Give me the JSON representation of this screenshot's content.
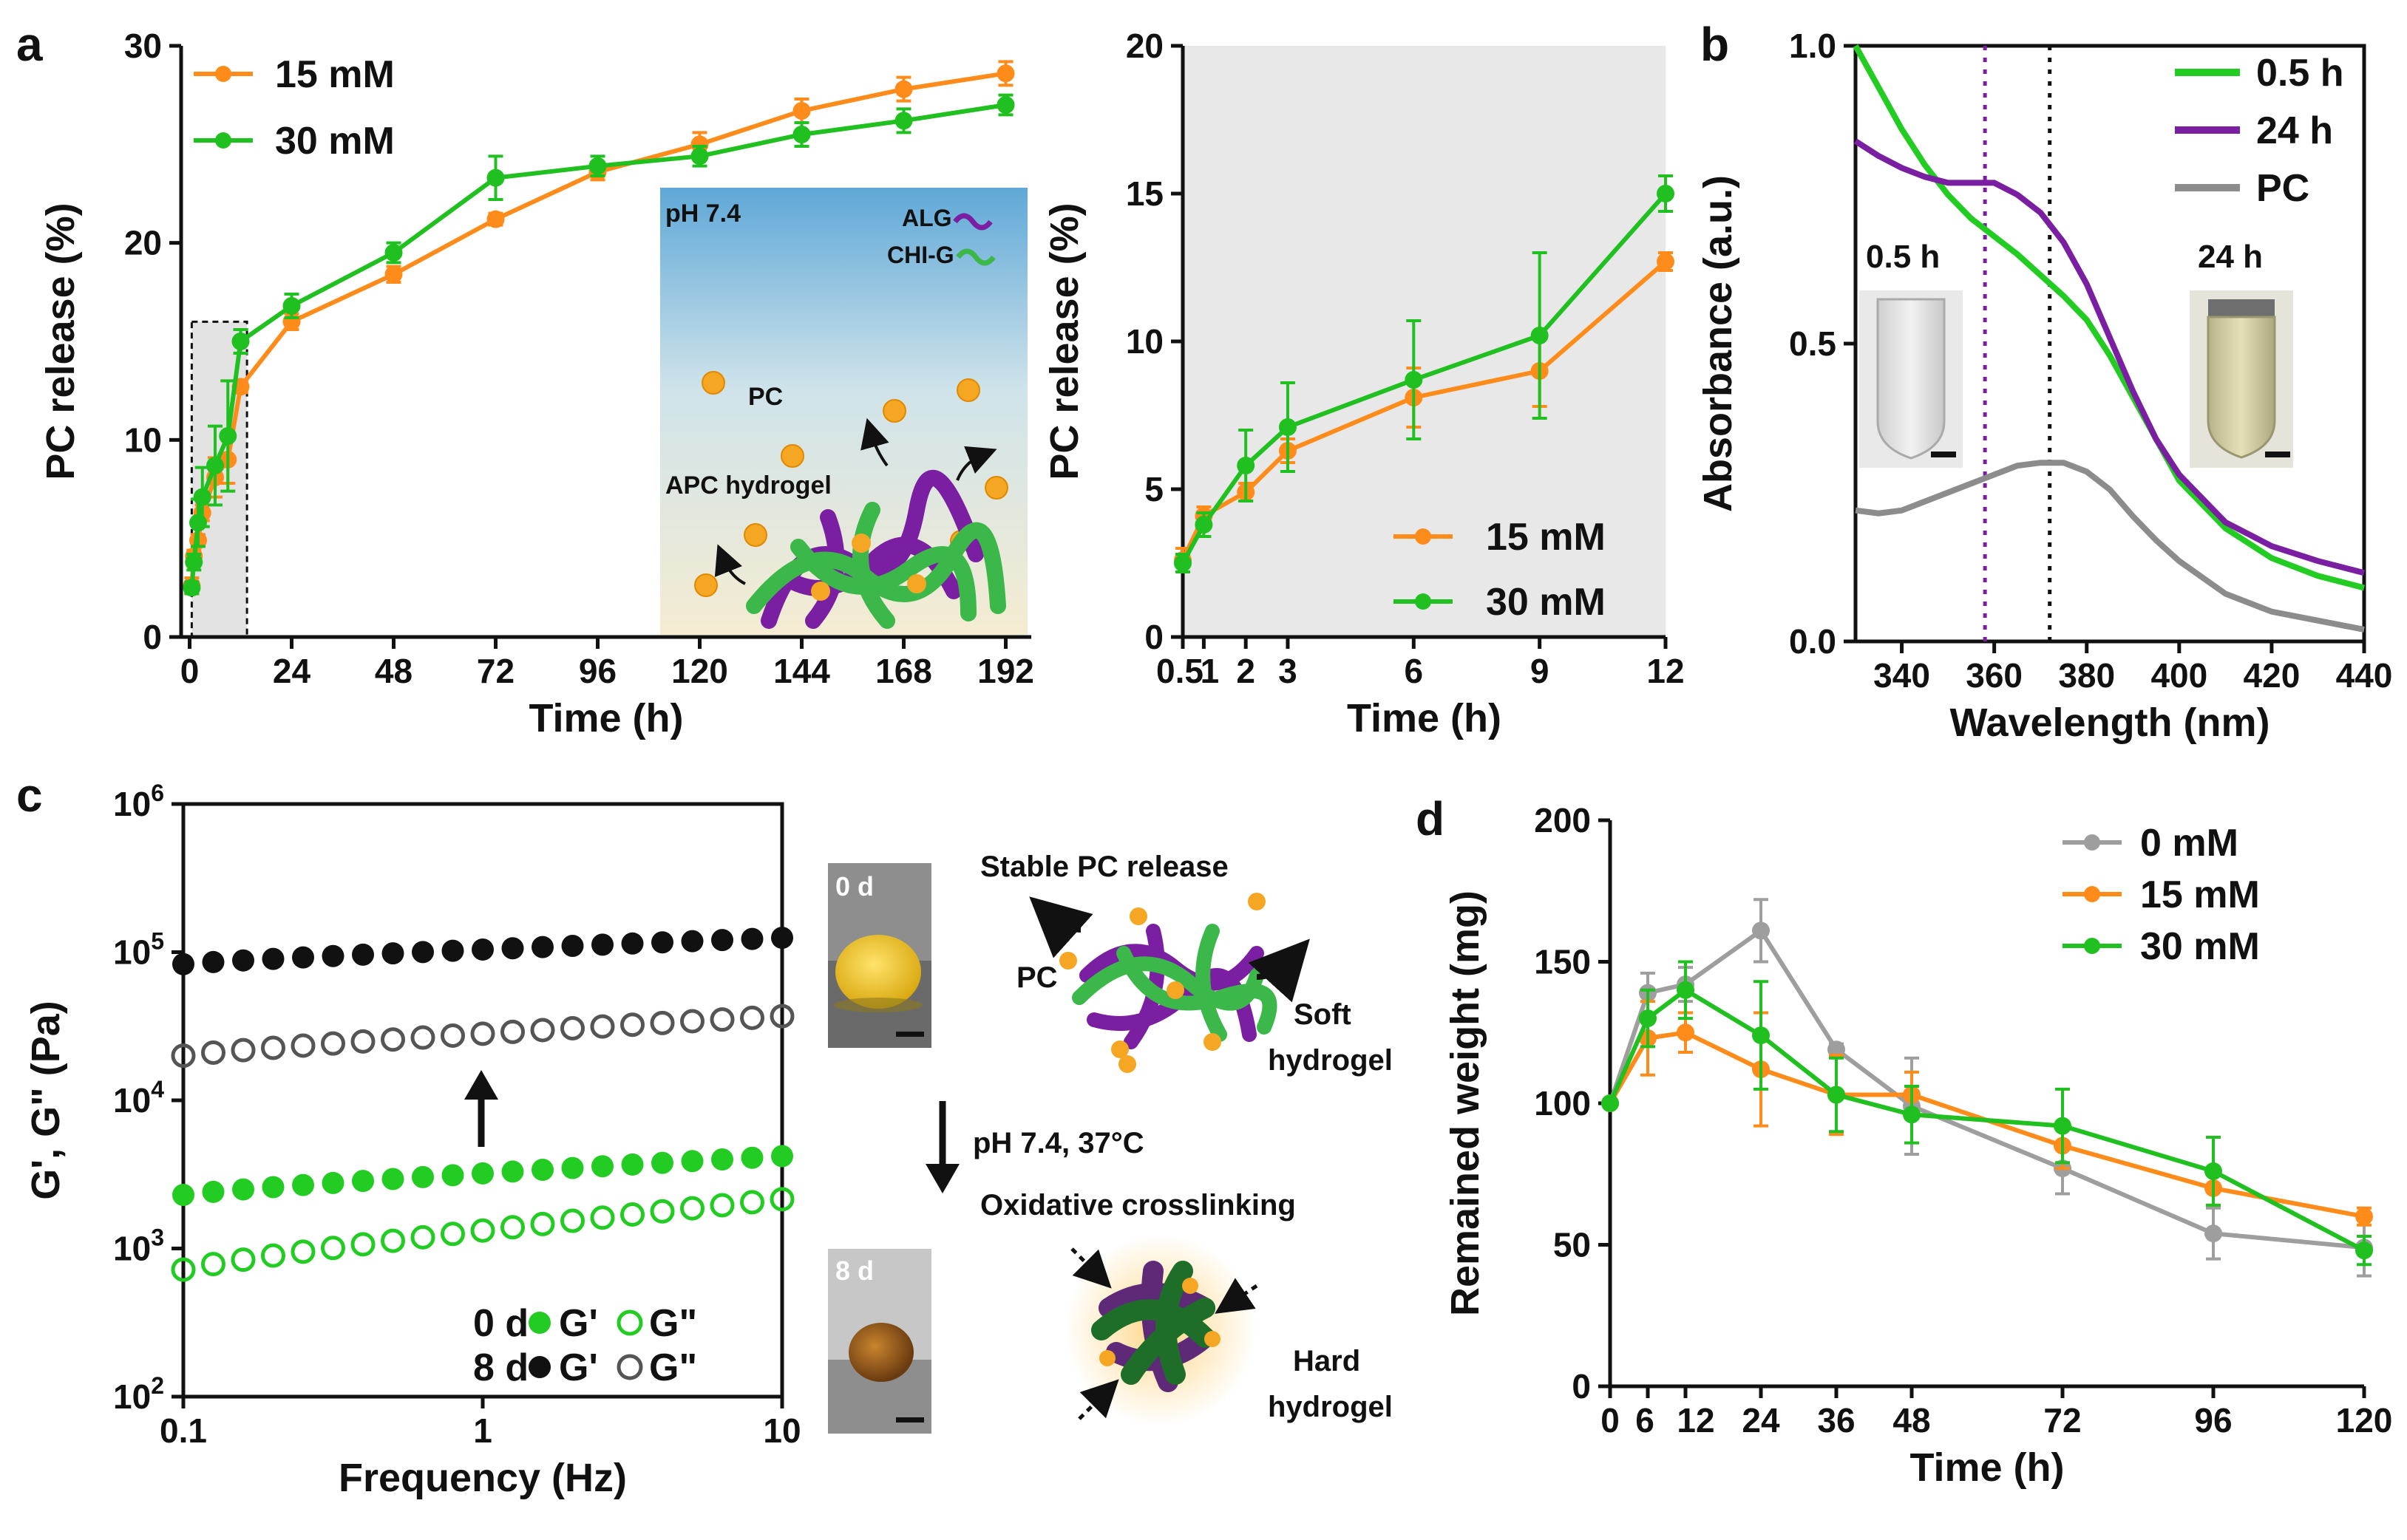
{
  "colors": {
    "orange": "#FF8C1A",
    "green": "#1FC01F",
    "purple": "#7A1FA2",
    "gray": "#8C8C8C",
    "black": "#111111",
    "light_green": "#22CC22",
    "dark_green": "#1E6E2A"
  },
  "panels": {
    "a": "a",
    "b": "b",
    "c": "c",
    "d": "d"
  },
  "chart_data": [
    {
      "id": "a-main",
      "type": "line",
      "xlabel": "Time (h)",
      "ylabel": "PC release (%)",
      "xlim": [
        -2,
        198
      ],
      "ylim": [
        0,
        30
      ],
      "xticks": [
        0,
        24,
        48,
        72,
        96,
        120,
        144,
        168,
        192
      ],
      "yticks": [
        0,
        10,
        20,
        30
      ],
      "legend_position": "top-left",
      "series": [
        {
          "name": "15 mM",
          "color": "#FF8C1A",
          "points": [
            {
              "x": 0.5,
              "y": 2.6,
              "err": 0.4
            },
            {
              "x": 1,
              "y": 4.1,
              "err": 0.3
            },
            {
              "x": 2,
              "y": 4.9,
              "err": 0.3
            },
            {
              "x": 3,
              "y": 6.3,
              "err": 0.4
            },
            {
              "x": 6,
              "y": 8.1,
              "err": 1.0
            },
            {
              "x": 9,
              "y": 9.0,
              "err": 1.2
            },
            {
              "x": 12,
              "y": 12.7,
              "err": 0.3
            },
            {
              "x": 24,
              "y": 16.0,
              "err": 0.4
            },
            {
              "x": 48,
              "y": 18.4,
              "err": 0.4
            },
            {
              "x": 72,
              "y": 21.2,
              "err": 0.3
            },
            {
              "x": 96,
              "y": 23.6,
              "err": 0.4
            },
            {
              "x": 120,
              "y": 25.0,
              "err": 0.6
            },
            {
              "x": 144,
              "y": 26.7,
              "err": 0.6
            },
            {
              "x": 168,
              "y": 27.8,
              "err": 0.6
            },
            {
              "x": 192,
              "y": 28.6,
              "err": 0.6
            }
          ]
        },
        {
          "name": "30 mM",
          "color": "#1FC01F",
          "points": [
            {
              "x": 0.5,
              "y": 2.5,
              "err": 0.3
            },
            {
              "x": 1,
              "y": 3.8,
              "err": 0.4
            },
            {
              "x": 2,
              "y": 5.8,
              "err": 1.2
            },
            {
              "x": 3,
              "y": 7.1,
              "err": 1.5
            },
            {
              "x": 6,
              "y": 8.7,
              "err": 2.0
            },
            {
              "x": 9,
              "y": 10.2,
              "err": 2.8
            },
            {
              "x": 12,
              "y": 15.0,
              "err": 0.6
            },
            {
              "x": 24,
              "y": 16.8,
              "err": 0.6
            },
            {
              "x": 48,
              "y": 19.5,
              "err": 0.5
            },
            {
              "x": 72,
              "y": 23.3,
              "err": 1.1
            },
            {
              "x": 96,
              "y": 23.9,
              "err": 0.5
            },
            {
              "x": 120,
              "y": 24.4,
              "err": 0.5
            },
            {
              "x": 144,
              "y": 25.5,
              "err": 0.6
            },
            {
              "x": 168,
              "y": 26.2,
              "err": 0.6
            },
            {
              "x": 192,
              "y": 27.0,
              "err": 0.5
            }
          ]
        }
      ],
      "annotation": "shaded zoom region 0–12 h",
      "inset": {
        "labels": {
          "ph": "pH 7.4",
          "alg": "ALG",
          "chig": "CHI-G",
          "pc": "PC",
          "apc": "APC hydrogel"
        }
      }
    },
    {
      "id": "a-zoom",
      "type": "line",
      "xlabel": "Time (h)",
      "ylabel": "PC release (%)",
      "xlim": [
        0.5,
        12
      ],
      "ylim": [
        0,
        20
      ],
      "xticks": [
        0.5,
        1,
        2,
        3,
        6,
        9,
        12
      ],
      "xtick_labels": [
        "0.5",
        "1",
        "2",
        "3",
        "6",
        "9",
        "12"
      ],
      "yticks": [
        0,
        5,
        10,
        15,
        20
      ],
      "legend_position": "bottom-right",
      "background": "#E8E8E8",
      "series_from": "a-main (0.5–12 h)"
    },
    {
      "id": "b",
      "type": "line",
      "xlabel": "Wavelength (nm)",
      "ylabel": "Absorbance (a.u.)",
      "xlim": [
        330,
        440
      ],
      "ylim": [
        0.0,
        1.0
      ],
      "xticks": [
        340,
        360,
        380,
        400,
        420,
        440
      ],
      "yticks": [
        0.0,
        0.5,
        1.0
      ],
      "legend_position": "top-right",
      "vlines": [
        {
          "x": 358,
          "color": "#7A1FA2",
          "style": "dotted"
        },
        {
          "x": 372,
          "color": "#111111",
          "style": "dotted"
        }
      ],
      "series": [
        {
          "name": "0.5 h",
          "color": "#22CC22",
          "x": [
            330,
            335,
            340,
            345,
            350,
            355,
            360,
            365,
            370,
            375,
            380,
            385,
            390,
            395,
            400,
            410,
            420,
            430,
            440
          ],
          "y": [
            1.0,
            0.93,
            0.86,
            0.8,
            0.75,
            0.71,
            0.68,
            0.65,
            0.615,
            0.58,
            0.54,
            0.48,
            0.41,
            0.34,
            0.27,
            0.19,
            0.14,
            0.11,
            0.09
          ]
        },
        {
          "name": "24 h",
          "color": "#7A1FA2",
          "x": [
            330,
            335,
            340,
            345,
            350,
            355,
            360,
            365,
            370,
            375,
            380,
            385,
            390,
            395,
            400,
            410,
            420,
            430,
            440
          ],
          "y": [
            0.84,
            0.815,
            0.795,
            0.78,
            0.77,
            0.77,
            0.77,
            0.75,
            0.72,
            0.67,
            0.6,
            0.51,
            0.42,
            0.34,
            0.28,
            0.2,
            0.16,
            0.135,
            0.115
          ]
        },
        {
          "name": "PC",
          "color": "#8C8C8C",
          "x": [
            330,
            335,
            340,
            345,
            350,
            355,
            360,
            365,
            370,
            375,
            380,
            385,
            390,
            395,
            400,
            410,
            420,
            430,
            440
          ],
          "y": [
            0.22,
            0.215,
            0.22,
            0.235,
            0.25,
            0.265,
            0.28,
            0.295,
            0.3,
            0.3,
            0.285,
            0.255,
            0.21,
            0.17,
            0.135,
            0.08,
            0.05,
            0.035,
            0.02
          ]
        }
      ],
      "insets": [
        "0.5 h",
        "24 h"
      ]
    },
    {
      "id": "c",
      "type": "scatter",
      "xlabel": "Frequency (Hz)",
      "ylabel": "G', G\" (Pa)",
      "xscale": "log",
      "yscale": "log",
      "xlim": [
        0.1,
        10
      ],
      "ylim": [
        100,
        1000000
      ],
      "xticks": [
        0.1,
        1,
        10
      ],
      "xtick_labels": [
        "0.1",
        "1",
        "10"
      ],
      "yticks": [
        100,
        1000,
        10000,
        100000,
        1000000
      ],
      "legend_position": "bottom-right",
      "legend_rows": [
        {
          "day": "0 d",
          "gp": "G'",
          "gpp": "G\""
        },
        {
          "day": "8 d",
          "gp": "G'",
          "gpp": "G\""
        }
      ],
      "series": [
        {
          "name": "0 d G'",
          "color": "#22CC22",
          "filled": true,
          "y_start": 2300,
          "y_end": 4200
        },
        {
          "name": "0 d G\"",
          "color": "#22CC22",
          "filled": false,
          "y_start": 720,
          "y_end": 2150
        },
        {
          "name": "8 d G'",
          "color": "#111111",
          "filled": true,
          "y_start": 83000,
          "y_end": 125000
        },
        {
          "name": "8 d G\"",
          "color": "#555555",
          "filled": false,
          "y_start": 20000,
          "y_end": 37000
        }
      ],
      "n_points": 21
    },
    {
      "id": "d",
      "type": "line",
      "xlabel": "Time (h)",
      "ylabel": "Remained weight (mg)",
      "xlim": [
        0,
        120
      ],
      "ylim": [
        0,
        200
      ],
      "xticks": [
        0,
        6,
        12,
        24,
        36,
        48,
        72,
        96,
        120
      ],
      "yticks": [
        0,
        50,
        100,
        150,
        200
      ],
      "legend_position": "top-right",
      "series": [
        {
          "name": "0 mM",
          "color": "#9E9E9E",
          "points": [
            {
              "x": 0,
              "y": 100,
              "err": 0
            },
            {
              "x": 6,
              "y": 139,
              "err": 7
            },
            {
              "x": 12,
              "y": 142,
              "err": 6
            },
            {
              "x": 24,
              "y": 161,
              "err": 11
            },
            {
              "x": 36,
              "y": 119,
              "err": 2
            },
            {
              "x": 48,
              "y": 99,
              "err": 17
            },
            {
              "x": 72,
              "y": 77,
              "err": 9
            },
            {
              "x": 96,
              "y": 54,
              "err": 9
            },
            {
              "x": 120,
              "y": 49,
              "err": 10
            }
          ]
        },
        {
          "name": "15 mM",
          "color": "#FF8C1A",
          "points": [
            {
              "x": 0,
              "y": 100,
              "err": 0
            },
            {
              "x": 6,
              "y": 123,
              "err": 13
            },
            {
              "x": 12,
              "y": 125,
              "err": 7
            },
            {
              "x": 24,
              "y": 112,
              "err": 20
            },
            {
              "x": 36,
              "y": 103,
              "err": 14
            },
            {
              "x": 48,
              "y": 103,
              "err": 8
            },
            {
              "x": 72,
              "y": 85,
              "err": 8
            },
            {
              "x": 96,
              "y": 70,
              "err": 6
            },
            {
              "x": 120,
              "y": 60,
              "err": 3
            }
          ]
        },
        {
          "name": "30 mM",
          "color": "#1FC01F",
          "points": [
            {
              "x": 0,
              "y": 100,
              "err": 0
            },
            {
              "x": 6,
              "y": 130,
              "err": 10
            },
            {
              "x": 12,
              "y": 140,
              "err": 10
            },
            {
              "x": 24,
              "y": 124,
              "err": 19
            },
            {
              "x": 36,
              "y": 103,
              "err": 13
            },
            {
              "x": 48,
              "y": 96,
              "err": 10
            },
            {
              "x": 72,
              "y": 92,
              "err": 13
            },
            {
              "x": 96,
              "y": 76,
              "err": 12
            },
            {
              "x": 120,
              "y": 48,
              "err": 5
            }
          ]
        }
      ]
    }
  ],
  "schematic": {
    "release_title": "Stable PC release",
    "pc": "PC",
    "soft": "Soft",
    "soft2": "hydrogel",
    "arrow_label": "pH 7.4, 37°C",
    "crosslink_title": "Oxidative crosslinking",
    "hard": "Hard",
    "hard2": "hydrogel",
    "day0": "0 d",
    "day8": "8 d"
  }
}
